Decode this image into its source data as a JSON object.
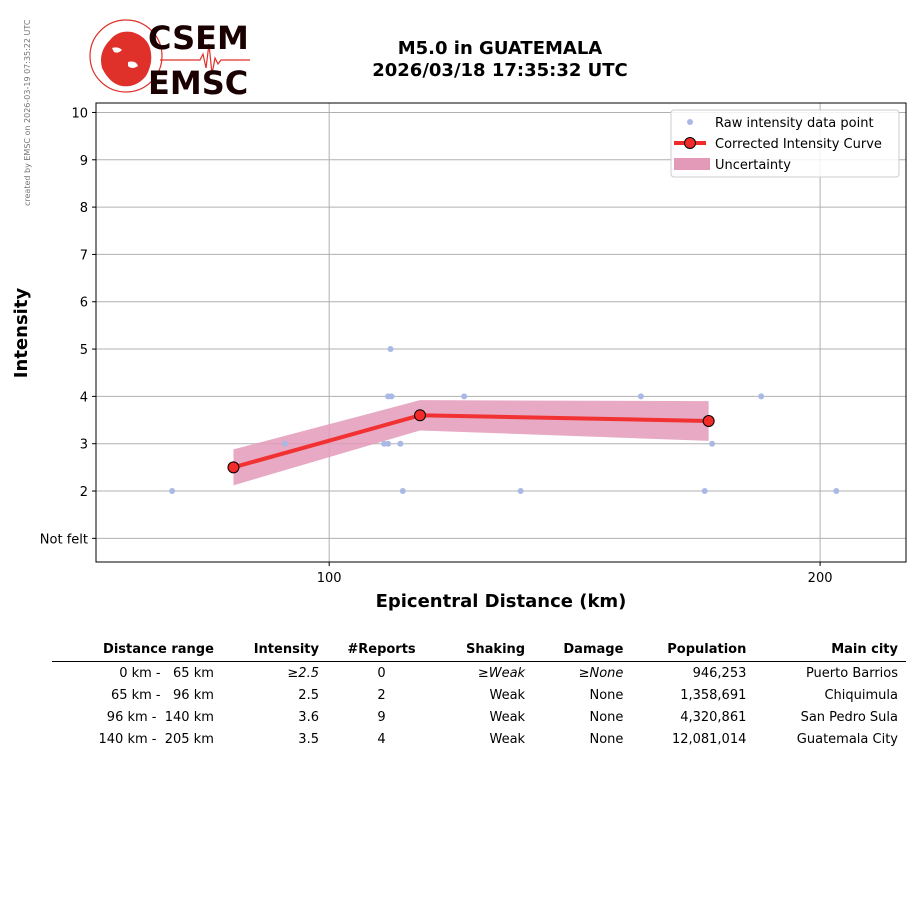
{
  "side_note": "created by EMSC on 2026-03-19 07:35:22 UTC",
  "logo": {
    "top_text": "CSEM",
    "bottom_text": "EMSC"
  },
  "title": {
    "line1": "M5.0 in GUATEMALA",
    "line2": "2026/03/18 17:35:32 UTC"
  },
  "chart_data": {
    "type": "scatter",
    "title": "M5.0 in GUATEMALA 2026/03/18 17:35:32 UTC",
    "xlabel": "Epicentral Distance (km)",
    "ylabel": "Intensity",
    "xlim": [
      52.5,
      217.5
    ],
    "ylim": [
      0.5,
      10.2
    ],
    "x_ticks": [
      100,
      200
    ],
    "y_ticks": [
      {
        "value": 1,
        "label": "Not felt"
      },
      {
        "value": 2,
        "label": "2"
      },
      {
        "value": 3,
        "label": "3"
      },
      {
        "value": 4,
        "label": "4"
      },
      {
        "value": 5,
        "label": "5"
      },
      {
        "value": 6,
        "label": "6"
      },
      {
        "value": 7,
        "label": "7"
      },
      {
        "value": 8,
        "label": "8"
      },
      {
        "value": 9,
        "label": "9"
      },
      {
        "value": 10,
        "label": "10"
      }
    ],
    "grid": true,
    "legend_position": "top-right",
    "legend": [
      "Raw intensity data point",
      "Corrected Intensity Curve",
      "Uncertainty"
    ],
    "raw_points": [
      {
        "x": 68,
        "y": 2
      },
      {
        "x": 91,
        "y": 3
      },
      {
        "x": 111.2,
        "y": 3
      },
      {
        "x": 112,
        "y": 3
      },
      {
        "x": 114.5,
        "y": 3
      },
      {
        "x": 112,
        "y": 4
      },
      {
        "x": 112.7,
        "y": 4
      },
      {
        "x": 112.5,
        "y": 5
      },
      {
        "x": 115,
        "y": 2
      },
      {
        "x": 127.5,
        "y": 4
      },
      {
        "x": 139,
        "y": 2
      },
      {
        "x": 163.5,
        "y": 4
      },
      {
        "x": 176.5,
        "y": 2
      },
      {
        "x": 178,
        "y": 3
      },
      {
        "x": 188,
        "y": 4
      },
      {
        "x": 203.3,
        "y": 2
      }
    ],
    "curve": [
      {
        "x": 80.5,
        "y": 2.5
      },
      {
        "x": 118.5,
        "y": 3.6
      },
      {
        "x": 177.3,
        "y": 3.48
      }
    ],
    "uncertainty": {
      "upper": [
        {
          "x": 80.5,
          "y": 2.88
        },
        {
          "x": 118.5,
          "y": 3.92
        },
        {
          "x": 177.3,
          "y": 3.9
        }
      ],
      "lower": [
        {
          "x": 80.5,
          "y": 2.12
        },
        {
          "x": 118.5,
          "y": 3.28
        },
        {
          "x": 177.3,
          "y": 3.06
        }
      ]
    },
    "colors": {
      "raw": "#aab8e6",
      "curve": "#f22a2a",
      "marker_edge": "#000000",
      "band": "#e39ab9",
      "grid": "#b0b0b0"
    }
  },
  "table": {
    "headers": [
      "Distance range",
      "Intensity",
      "#Reports",
      "Shaking",
      "Damage",
      "Population",
      "Main city"
    ],
    "rows": [
      {
        "range": "0 km -   65 km",
        "intensity": "≥2.5",
        "reports": "0",
        "shaking": "≥Weak",
        "damage": "≥None",
        "population": "946,253",
        "city": "Puerto Barrios"
      },
      {
        "range": "65 km -   96 km",
        "intensity": "2.5",
        "reports": "2",
        "shaking": "Weak",
        "damage": "None",
        "population": "1,358,691",
        "city": "Chiquimula"
      },
      {
        "range": "96 km -  140 km",
        "intensity": "3.6",
        "reports": "9",
        "shaking": "Weak",
        "damage": "None",
        "population": "4,320,861",
        "city": "San Pedro Sula"
      },
      {
        "range": "140 km -  205 km",
        "intensity": "3.5",
        "reports": "4",
        "shaking": "Weak",
        "damage": "None",
        "population": "12,081,014",
        "city": "Guatemala City"
      }
    ]
  }
}
